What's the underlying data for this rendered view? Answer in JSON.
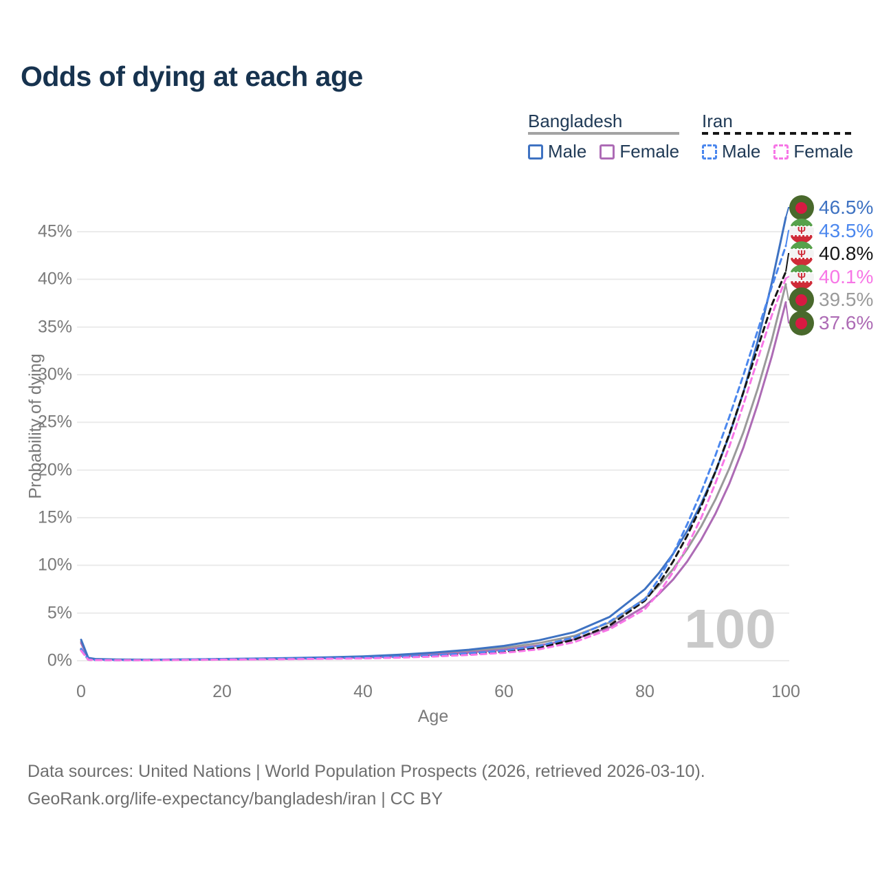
{
  "title": "Odds of dying at each age",
  "legend": {
    "groups": [
      {
        "label": "Bangladesh",
        "line_style": "solid",
        "line_color": "#a3a3a3"
      },
      {
        "label": "Iran",
        "line_style": "dashed",
        "line_color": "#161616"
      }
    ],
    "items": [
      {
        "label": "Male",
        "country": "Bangladesh",
        "color": "#3e72c2",
        "dashed": false
      },
      {
        "label": "Female",
        "country": "Bangladesh",
        "color": "#ad6bb5",
        "dashed": false
      },
      {
        "label": "Male",
        "country": "Iran",
        "color": "#4b87ee",
        "dashed": true
      },
      {
        "label": "Female",
        "country": "Iran",
        "color": "#f776e6",
        "dashed": true
      }
    ]
  },
  "chart_data": {
    "type": "line",
    "title": "Odds of dying at each age",
    "xlabel": "Age",
    "ylabel": "Probability of dying",
    "xlim": [
      0,
      100
    ],
    "ylim": [
      0,
      47.5
    ],
    "grid": true,
    "watermark": "100",
    "watermark_color": "#c9c9c9",
    "x_ticks": [
      {
        "v": 0,
        "label": "0"
      },
      {
        "v": 20,
        "label": "20"
      },
      {
        "v": 40,
        "label": "40"
      },
      {
        "v": 60,
        "label": "60"
      },
      {
        "v": 80,
        "label": "80"
      },
      {
        "v": 100,
        "label": "100"
      }
    ],
    "y_ticks": [
      {
        "v": 0,
        "label": "0%"
      },
      {
        "v": 5,
        "label": "5%"
      },
      {
        "v": 10,
        "label": "10%"
      },
      {
        "v": 15,
        "label": "15%"
      },
      {
        "v": 20,
        "label": "20%"
      },
      {
        "v": 25,
        "label": "25%"
      },
      {
        "v": 30,
        "label": "30%"
      },
      {
        "v": 35,
        "label": "35%"
      },
      {
        "v": 40,
        "label": "40%"
      },
      {
        "v": 45,
        "label": "45%"
      }
    ],
    "ages": [
      0,
      1,
      2,
      5,
      10,
      15,
      20,
      25,
      30,
      35,
      40,
      45,
      50,
      55,
      60,
      65,
      70,
      75,
      80,
      82,
      84,
      86,
      88,
      90,
      92,
      94,
      96,
      98,
      100
    ],
    "series": [
      {
        "name": "Bangladesh",
        "flag": "bangladesh",
        "color": "#9a9a9a",
        "dashed": false,
        "end_label": "39.5%",
        "values": [
          2.0,
          0.26,
          0.16,
          0.1,
          0.09,
          0.12,
          0.15,
          0.18,
          0.24,
          0.3,
          0.39,
          0.53,
          0.74,
          1.0,
          1.35,
          1.85,
          2.6,
          4.0,
          6.5,
          7.9,
          9.6,
          11.7,
          14.1,
          16.9,
          20.2,
          24.0,
          28.5,
          33.6,
          39.5
        ]
      },
      {
        "name": "Bangladesh Female",
        "flag": "bangladesh",
        "color": "#ad6bb5",
        "dashed": false,
        "end_label": "37.6%",
        "values": [
          1.85,
          0.22,
          0.14,
          0.09,
          0.08,
          0.1,
          0.12,
          0.15,
          0.2,
          0.26,
          0.33,
          0.45,
          0.63,
          0.86,
          1.15,
          1.6,
          2.25,
          3.5,
          5.7,
          7.0,
          8.5,
          10.4,
          12.7,
          15.4,
          18.6,
          22.4,
          26.9,
          31.9,
          37.6
        ]
      },
      {
        "name": "Bangladesh Male",
        "flag": "bangladesh",
        "color": "#3e72c2",
        "dashed": false,
        "end_label": "46.5%",
        "values": [
          2.2,
          0.3,
          0.18,
          0.12,
          0.1,
          0.14,
          0.18,
          0.22,
          0.28,
          0.35,
          0.45,
          0.62,
          0.85,
          1.15,
          1.55,
          2.15,
          3.0,
          4.6,
          7.5,
          9.2,
          11.2,
          13.6,
          16.5,
          19.8,
          23.7,
          28.2,
          33.5,
          39.6,
          46.5
        ]
      },
      {
        "name": "Iran",
        "flag": "iran",
        "color": "#161616",
        "dashed": true,
        "end_label": "40.8%",
        "values": [
          1.15,
          0.11,
          0.07,
          0.055,
          0.065,
          0.1,
          0.14,
          0.16,
          0.19,
          0.23,
          0.28,
          0.37,
          0.5,
          0.69,
          0.93,
          1.38,
          2.2,
          3.7,
          6.3,
          8.1,
          10.4,
          13.1,
          16.2,
          19.8,
          23.8,
          28.2,
          32.8,
          37.3,
          40.8
        ]
      },
      {
        "name": "Iran Male",
        "flag": "iran",
        "color": "#4b87ee",
        "dashed": true,
        "end_label": "43.5%",
        "values": [
          1.25,
          0.12,
          0.08,
          0.06,
          0.07,
          0.12,
          0.16,
          0.19,
          0.22,
          0.26,
          0.32,
          0.42,
          0.56,
          0.78,
          1.05,
          1.55,
          2.45,
          4.1,
          6.45,
          8.6,
          11.2,
          14.3,
          17.7,
          21.5,
          25.6,
          30.0,
          34.6,
          39.2,
          43.5
        ]
      },
      {
        "name": "Iran Female",
        "flag": "iran",
        "color": "#f776e6",
        "dashed": true,
        "end_label": "40.1%",
        "values": [
          1.05,
          0.1,
          0.065,
          0.05,
          0.055,
          0.08,
          0.11,
          0.13,
          0.16,
          0.2,
          0.24,
          0.32,
          0.43,
          0.6,
          0.82,
          1.2,
          1.95,
          3.3,
          5.4,
          7.1,
          9.3,
          12.0,
          15.0,
          18.6,
          22.5,
          26.9,
          31.6,
          36.2,
          40.1
        ]
      }
    ],
    "iran_emblem_glyph": "Ψ"
  },
  "footer": {
    "line1": "Data sources: United Nations | World Population Prospects (2026, retrieved 2026-03-10).",
    "line2": "GeoRank.org/life-expectancy/bangladesh/iran | CC BY"
  }
}
